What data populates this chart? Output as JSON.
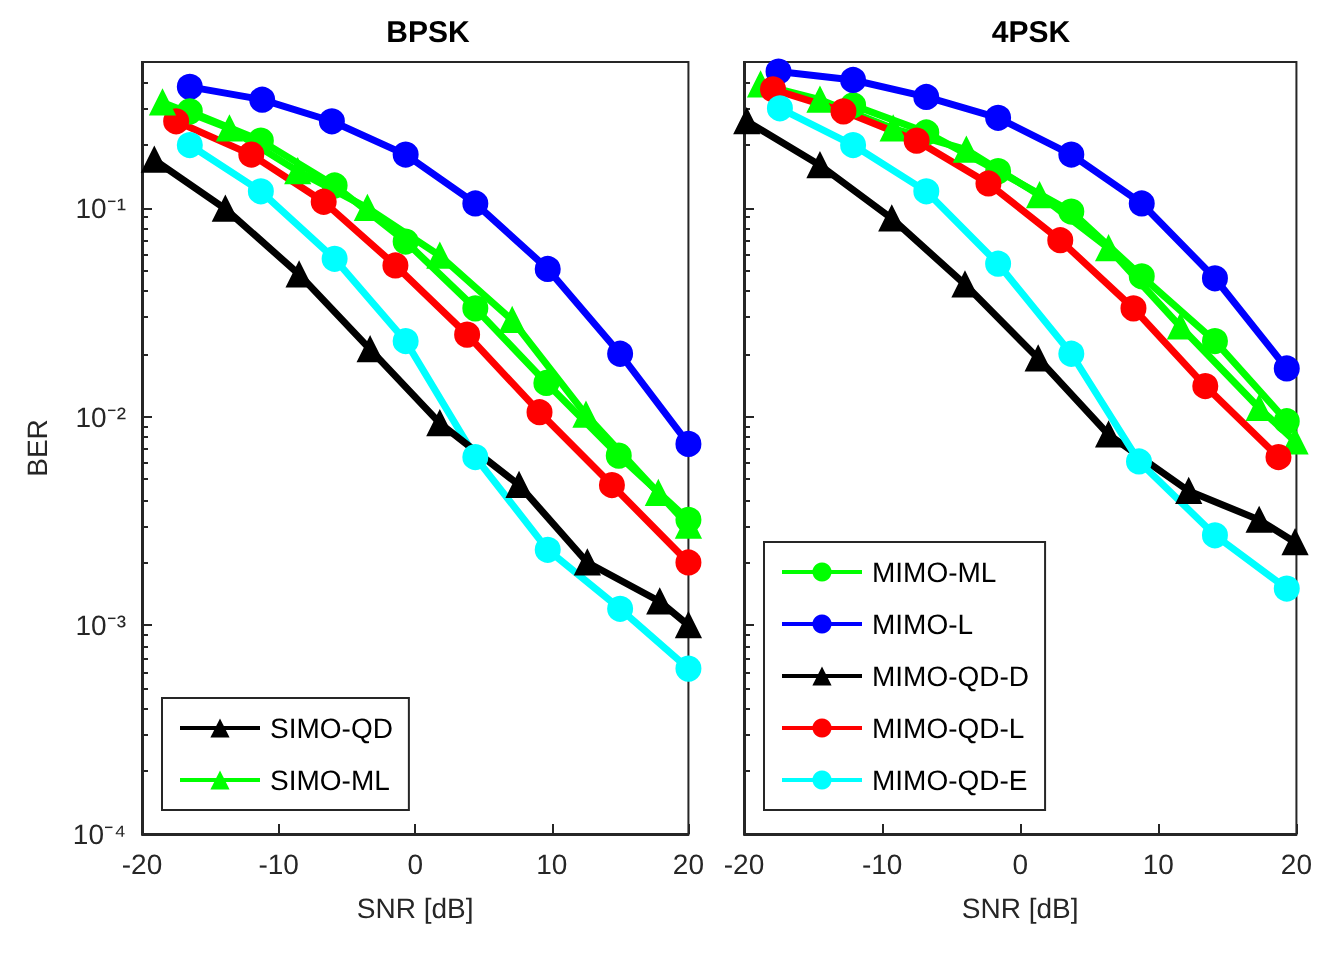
{
  "chart_data": [
    {
      "type": "line",
      "title": "BPSK",
      "xlabel": "SNR [dB]",
      "ylabel": "BER",
      "log": "y",
      "grid": false,
      "legend": "bottom left",
      "xlim": [
        -20,
        20
      ],
      "xticks": [
        -20,
        -10,
        0,
        10,
        20
      ],
      "ylim": [
        0.0001,
        0.5
      ],
      "yticks": [
        {
          "value": 0.0001,
          "label": "10⁻⁴"
        },
        {
          "value": 0.001,
          "label": "10⁻³"
        },
        {
          "value": 0.01,
          "label": "10⁻²"
        },
        {
          "value": 0.1,
          "label": "10⁻¹"
        }
      ],
      "series": [
        {
          "color": "#0000ff",
          "marker": "circle",
          "x": [
            -16.5,
            -11.2,
            -6.1,
            -0.7,
            4.4,
            9.7,
            15.0,
            20
          ],
          "values": [
            0.38,
            0.33,
            0.26,
            0.18,
            0.105,
            0.051,
            0.02,
            0.0074
          ]
        },
        {
          "color": "#00ff00",
          "marker": "circle",
          "x": [
            -16.5,
            -11.3,
            -5.9,
            -0.7,
            4.4,
            9.6,
            14.9,
            20
          ],
          "values": [
            0.29,
            0.21,
            0.128,
            0.069,
            0.033,
            0.0145,
            0.0065,
            0.0032
          ]
        },
        {
          "color": "#ff0000",
          "marker": "circle",
          "x": [
            -17.5,
            -12.0,
            -6.7,
            -1.45,
            3.8,
            9.1,
            14.4,
            20
          ],
          "values": [
            0.26,
            0.18,
            0.107,
            0.053,
            0.0247,
            0.0105,
            0.0047,
            0.002
          ]
        },
        {
          "color": "#00ffff",
          "marker": "circle",
          "x": [
            -16.5,
            -11.3,
            -5.9,
            -0.7,
            4.4,
            9.7,
            15.0,
            20
          ],
          "values": [
            0.2,
            0.12,
            0.057,
            0.023,
            0.0064,
            0.0023,
            0.0012,
            0.00062
          ]
        },
        {
          "name": "SIMO-QD",
          "color": "#000000",
          "marker": "triangle",
          "x": [
            -19.1,
            -13.9,
            -8.5,
            -3.3,
            1.8,
            7.6,
            12.6,
            17.9,
            20
          ],
          "values": [
            0.17,
            0.099,
            0.048,
            0.021,
            0.0093,
            0.0047,
            0.002,
            0.0013,
            0.001
          ]
        },
        {
          "name": "SIMO-ML",
          "color": "#00ff00",
          "marker": "triangle",
          "x": [
            -18.5,
            -13.6,
            -8.6,
            -3.5,
            1.8,
            7.1,
            12.5,
            17.8,
            20
          ],
          "values": [
            0.32,
            0.24,
            0.15,
            0.1,
            0.059,
            0.029,
            0.0102,
            0.0043,
            0.003
          ]
        }
      ]
    },
    {
      "type": "line",
      "title": "4PSK",
      "xlabel": "SNR [dB]",
      "log": "y",
      "grid": false,
      "legend": "bottom left",
      "tick_labels": "x",
      "xlim": [
        -20,
        20
      ],
      "xticks": [
        -20,
        -10,
        0,
        10,
        20
      ],
      "ylim": [
        0.0001,
        0.5
      ],
      "yticks": [
        {
          "value": 0.0001,
          "label": null
        },
        {
          "value": 0.001,
          "label": null
        },
        {
          "value": 0.01,
          "label": null
        },
        {
          "value": 0.1,
          "label": null
        }
      ],
      "series": [
        {
          "color": "#00ff00",
          "marker": "triangle",
          "x": [
            -18.8,
            -14.5,
            -9.2,
            -3.9,
            1.4,
            6.4,
            11.6,
            17.3,
            19.9
          ],
          "values": [
            0.39,
            0.33,
            0.24,
            0.19,
            0.115,
            0.064,
            0.027,
            0.011,
            0.0076
          ]
        },
        {
          "name": "MIMO-ML",
          "color": "#00ff00",
          "marker": "circle",
          "x": [
            -12.1,
            -6.8,
            -1.6,
            3.7,
            8.8,
            14.1,
            19.3
          ],
          "values": [
            0.31,
            0.23,
            0.15,
            0.096,
            0.047,
            0.023,
            0.0095
          ]
        },
        {
          "name": "MIMO-L",
          "color": "#0000ff",
          "marker": "circle",
          "x": [
            -17.5,
            -12.1,
            -6.8,
            -1.6,
            3.7,
            8.8,
            14.1,
            19.3
          ],
          "values": [
            0.45,
            0.41,
            0.34,
            0.27,
            0.18,
            0.105,
            0.046,
            0.017
          ]
        },
        {
          "name": "MIMO-QD-D",
          "color": "#000000",
          "marker": "triangle",
          "x": [
            -19.8,
            -14.5,
            -9.3,
            -4.0,
            1.3,
            6.4,
            12.2,
            17.3,
            19.9
          ],
          "values": [
            0.26,
            0.16,
            0.089,
            0.043,
            0.019,
            0.0082,
            0.0044,
            0.0032,
            0.0025
          ]
        },
        {
          "name": "MIMO-QD-L",
          "color": "#ff0000",
          "marker": "circle",
          "x": [
            -17.9,
            -12.8,
            -7.5,
            -2.3,
            2.9,
            8.2,
            13.4,
            18.7
          ],
          "values": [
            0.37,
            0.29,
            0.21,
            0.131,
            0.07,
            0.033,
            0.014,
            0.0064
          ]
        },
        {
          "name": "MIMO-QD-E",
          "color": "#00ffff",
          "marker": "circle",
          "x": [
            -17.4,
            -12.1,
            -6.8,
            -1.6,
            3.7,
            8.6,
            14.1,
            19.3
          ],
          "values": [
            0.3,
            0.2,
            0.12,
            0.054,
            0.02,
            0.0061,
            0.0027,
            0.0015
          ]
        }
      ]
    }
  ]
}
